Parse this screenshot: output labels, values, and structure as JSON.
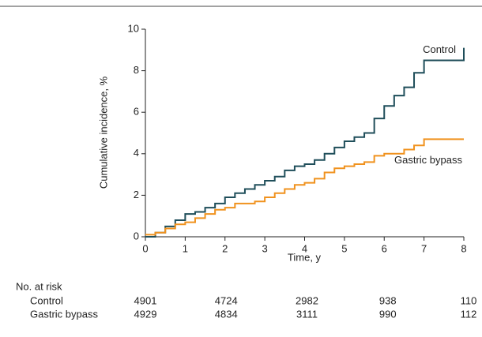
{
  "chart_data": {
    "type": "step",
    "xlabel": "Time, y",
    "ylabel": "Cumulative incidence, %",
    "x": [
      0,
      0.25,
      0.5,
      0.75,
      1,
      1.25,
      1.5,
      1.75,
      2,
      2.25,
      2.5,
      2.75,
      3,
      3.25,
      3.5,
      3.75,
      4,
      4.25,
      4.5,
      4.75,
      5,
      5.25,
      5.5,
      5.75,
      6,
      6.25,
      6.5,
      6.75,
      7,
      7.25,
      7.5,
      7.75,
      8
    ],
    "series": [
      {
        "name": "Control",
        "color": "#1f4e5a",
        "values": [
          0,
          0.2,
          0.5,
          0.8,
          1.1,
          1.2,
          1.4,
          1.6,
          1.9,
          2.1,
          2.3,
          2.5,
          2.7,
          2.9,
          3.2,
          3.4,
          3.5,
          3.7,
          4.0,
          4.3,
          4.6,
          4.8,
          5.0,
          5.7,
          6.3,
          6.8,
          7.2,
          7.9,
          8.5,
          8.5,
          8.5,
          8.5,
          9.1
        ]
      },
      {
        "name": "Gastric bypass",
        "color": "#f0921e",
        "values": [
          0.1,
          0.2,
          0.4,
          0.6,
          0.7,
          0.9,
          1.1,
          1.3,
          1.4,
          1.6,
          1.6,
          1.7,
          1.9,
          2.1,
          2.3,
          2.5,
          2.6,
          2.8,
          3.1,
          3.3,
          3.4,
          3.5,
          3.6,
          3.9,
          4.0,
          4.0,
          4.2,
          4.4,
          4.7,
          4.7,
          4.7,
          4.7,
          4.7
        ]
      }
    ],
    "xlim": [
      0,
      8
    ],
    "xticks": [
      0,
      1,
      2,
      3,
      4,
      5,
      6,
      7,
      8
    ],
    "ylim": [
      0,
      10
    ],
    "yticks": [
      0,
      2,
      4,
      6,
      8,
      10
    ],
    "risk_table": {
      "title": "No. at risk",
      "rows": [
        {
          "name": "Control",
          "values": [
            4901,
            4724,
            2982,
            938,
            110
          ]
        },
        {
          "name": "Gastric bypass",
          "values": [
            4929,
            4834,
            3111,
            990,
            112
          ]
        }
      ]
    }
  }
}
